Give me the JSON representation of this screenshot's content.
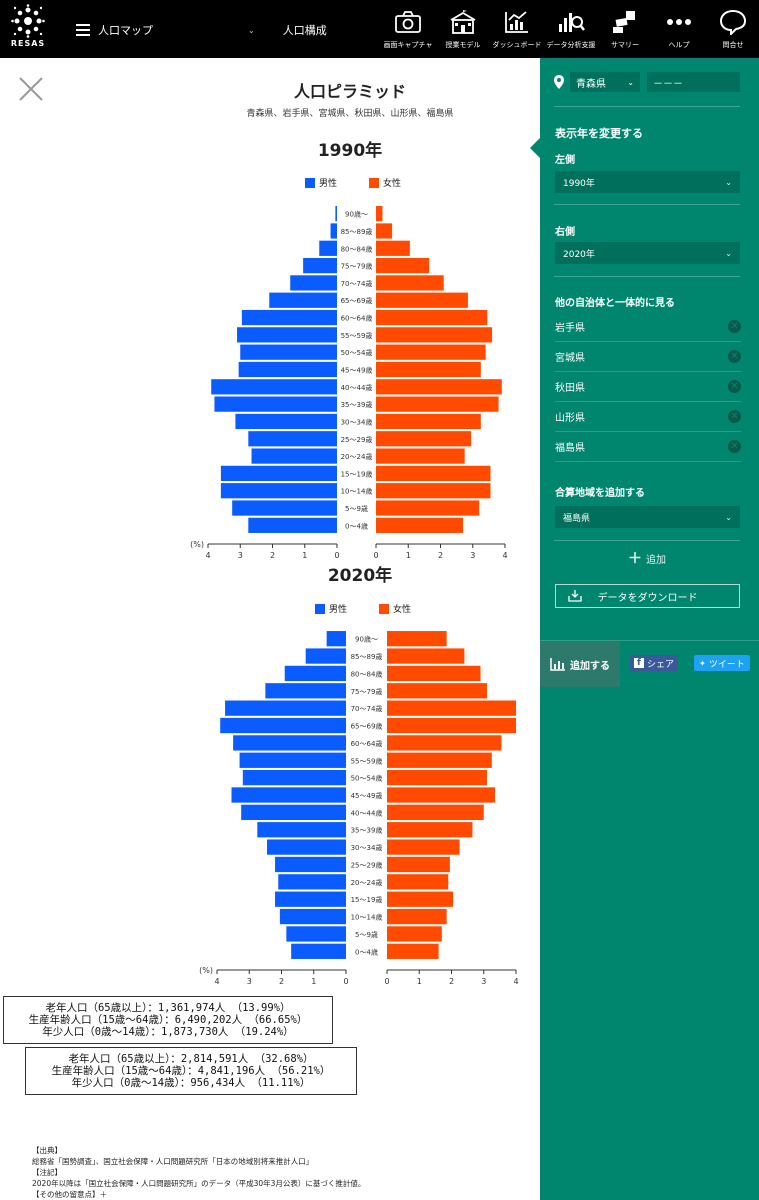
{
  "header": {
    "logo_text": "RESAS",
    "menu_label": "人口マップ",
    "menu_select": "人口構成",
    "nav": [
      {
        "icon": "camera-icon",
        "label": "画面キャプチャ"
      },
      {
        "icon": "school-icon",
        "label": "授業モデル"
      },
      {
        "icon": "dashboard-icon",
        "label": "ダッシュボード"
      },
      {
        "icon": "analysis-icon",
        "label": "データ分析支援"
      },
      {
        "icon": "summary-icon",
        "label": "サマリー"
      },
      {
        "icon": "help-icon",
        "label": "ヘルプ"
      },
      {
        "icon": "contact-icon",
        "label": "問合せ"
      }
    ]
  },
  "page": {
    "title": "人口ピラミッド",
    "subtitle": "青森県、岩手県、宮城県、秋田県、山形県、福島県"
  },
  "panel": {
    "prefecture": "青森県",
    "city": "－－－",
    "change_year_title": "表示年を変更する",
    "left_label": "左側",
    "left_value": "1990年",
    "right_label": "右側",
    "right_value": "2020年",
    "combined_title": "他の自治体と一体的に見る",
    "combined": [
      "岩手県",
      "宮城県",
      "秋田県",
      "山形県",
      "福島県"
    ],
    "add_region_title": "合算地域を追加する",
    "add_region_value": "福島県",
    "add_label": "追加",
    "download_label": "データをダウンロード",
    "add_tab_label": "追加する",
    "share_label": "シェア",
    "tweet_label": "ツイート"
  },
  "colors": {
    "male": "#0a5cff",
    "female": "#ff4a00",
    "panel": "#00856f"
  },
  "chart_data": [
    {
      "type": "bar",
      "title": "1990年",
      "legend": [
        "男性",
        "女性"
      ],
      "unit_label": "(%)",
      "categories": [
        "90歳～",
        "85～89歳",
        "80～84歳",
        "75～79歳",
        "70～74歳",
        "65～69歳",
        "60～64歳",
        "55～59歳",
        "50～54歳",
        "45～49歳",
        "40～44歳",
        "35～39歳",
        "30～34歳",
        "25～29歳",
        "20～24歳",
        "15～19歳",
        "10～14歳",
        "5～9歳",
        "0～4歳"
      ],
      "series": [
        {
          "name": "男性",
          "values": [
            0.05,
            0.2,
            0.55,
            1.05,
            1.45,
            2.1,
            2.95,
            3.1,
            3.0,
            3.05,
            3.9,
            3.8,
            3.15,
            2.75,
            2.65,
            3.6,
            3.6,
            3.25,
            2.75
          ]
        },
        {
          "name": "女性",
          "values": [
            0.2,
            0.5,
            1.05,
            1.65,
            2.1,
            2.85,
            3.45,
            3.6,
            3.4,
            3.25,
            3.9,
            3.8,
            3.25,
            2.95,
            2.75,
            3.55,
            3.55,
            3.2,
            2.7
          ]
        }
      ],
      "xlim": [
        0,
        4
      ],
      "ticks": [
        "4",
        "3",
        "2",
        "1",
        "0"
      ]
    },
    {
      "type": "bar",
      "title": "2020年",
      "legend": [
        "男性",
        "女性"
      ],
      "unit_label": "(%)",
      "categories": [
        "90歳～",
        "85～89歳",
        "80～84歳",
        "75～79歳",
        "70～74歳",
        "65～69歳",
        "60～64歳",
        "55～59歳",
        "50～54歳",
        "45～49歳",
        "40～44歳",
        "35～39歳",
        "30～34歳",
        "25～29歳",
        "20～24歳",
        "15～19歳",
        "10～14歳",
        "5～9歳",
        "0～4歳"
      ],
      "series": [
        {
          "name": "男性",
          "values": [
            0.6,
            1.25,
            1.9,
            2.5,
            3.75,
            3.9,
            3.5,
            3.3,
            3.2,
            3.55,
            3.25,
            2.75,
            2.45,
            2.2,
            2.1,
            2.2,
            2.05,
            1.85,
            1.7
          ]
        },
        {
          "name": "女性",
          "values": [
            1.85,
            2.4,
            2.9,
            3.1,
            4.0,
            4.0,
            3.55,
            3.25,
            3.1,
            3.35,
            3.0,
            2.65,
            2.25,
            1.95,
            1.9,
            2.05,
            1.85,
            1.7,
            1.6
          ]
        }
      ],
      "xlim": [
        0,
        4
      ],
      "ticks": [
        "4",
        "3",
        "2",
        "1",
        "0"
      ]
    }
  ],
  "summary": {
    "left": [
      "老年人口（65歳以上）：1,361,974人 （13.99%）",
      "生産年齢人口（15歳～64歳）：6,490,202人 （66.65%）",
      "年少人口（0歳～14歳）：1,873,730人 （19.24%）"
    ],
    "right": [
      "老年人口（65歳以上）：2,814,591人 （32.68%）",
      "生産年齢人口（15歳～64歳）：4,841,196人 （56.21%）",
      "年少人口（0歳～14歳）：956,434人 （11.11%）"
    ]
  },
  "footer": {
    "source_title": "【出典】",
    "source": "総務省「国勢調査」、国立社会保障・人口問題研究所「日本の地域別将来推計人口」",
    "note_title": "【注記】",
    "note": "2020年以降は「国立社会保障・人口問題研究所」のデータ（平成30年3月公表）に基づく推計値。",
    "caution": "【その他の留意点】＋"
  }
}
